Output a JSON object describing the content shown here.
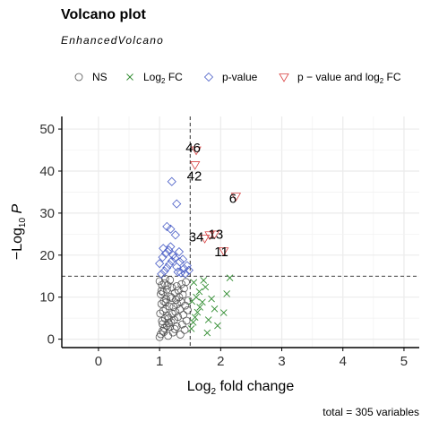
{
  "chart_data": {
    "type": "scatter",
    "title": "Volcano plot",
    "subtitle": "EnhancedVolcano",
    "caption": "total = 305 variables",
    "xlabel": "Log2 fold change",
    "ylabel": "−Log10 P",
    "xlim": [
      -0.6,
      5.25
    ],
    "ylim": [
      -2,
      53
    ],
    "x_ticks": [
      0,
      1,
      2,
      3,
      4,
      5
    ],
    "y_ticks": [
      0,
      10,
      20,
      30,
      40,
      50
    ],
    "thresholds": {
      "log2fc": 1.5,
      "neg_log10_p": 15
    },
    "grid": true,
    "legend_position": "top",
    "legend": [
      {
        "key": "NS",
        "label": "NS",
        "color": "#555555",
        "marker": "circle"
      },
      {
        "key": "FC",
        "label": "Log2 FC",
        "color": "#2e8b2e",
        "marker": "cross"
      },
      {
        "key": "P",
        "label": "p-value",
        "color": "#4b5fc7",
        "marker": "diamond"
      },
      {
        "key": "PFC",
        "label": "p − value and log2 FC",
        "color": "#d94040",
        "marker": "triangle-down"
      }
    ],
    "series": [
      {
        "key": "NS",
        "points": [
          [
            1.0,
            0.5
          ],
          [
            1.02,
            1.2
          ],
          [
            1.05,
            2.0
          ],
          [
            1.08,
            2.6
          ],
          [
            1.12,
            3.2
          ],
          [
            1.15,
            3.8
          ],
          [
            1.04,
            4.3
          ],
          [
            1.09,
            4.9
          ],
          [
            1.13,
            5.5
          ],
          [
            1.01,
            6.1
          ],
          [
            1.06,
            6.7
          ],
          [
            1.1,
            7.2
          ],
          [
            1.16,
            7.8
          ],
          [
            1.03,
            8.4
          ],
          [
            1.07,
            9.0
          ],
          [
            1.11,
            9.5
          ],
          [
            1.18,
            10.1
          ],
          [
            1.02,
            10.7
          ],
          [
            1.06,
            11.2
          ],
          [
            1.12,
            11.8
          ],
          [
            1.2,
            12.3
          ],
          [
            1.04,
            12.9
          ],
          [
            1.08,
            13.3
          ],
          [
            1.0,
            13.8
          ],
          [
            1.14,
            0.8
          ],
          [
            1.22,
            1.6
          ],
          [
            1.25,
            2.4
          ],
          [
            1.28,
            3.0
          ],
          [
            1.19,
            4.0
          ],
          [
            1.24,
            4.6
          ],
          [
            1.3,
            5.3
          ],
          [
            1.21,
            6.0
          ],
          [
            1.26,
            6.5
          ],
          [
            1.33,
            7.1
          ],
          [
            1.23,
            7.7
          ],
          [
            1.29,
            8.3
          ],
          [
            1.35,
            8.9
          ],
          [
            1.27,
            9.4
          ],
          [
            1.32,
            10.0
          ],
          [
            1.38,
            10.6
          ],
          [
            1.25,
            11.0
          ],
          [
            1.31,
            11.6
          ],
          [
            1.4,
            12.1
          ],
          [
            1.28,
            12.6
          ],
          [
            1.36,
            13.1
          ],
          [
            1.43,
            13.6
          ],
          [
            1.17,
            14.1
          ],
          [
            1.09,
            14.4
          ],
          [
            1.34,
            1.1
          ],
          [
            1.41,
            2.2
          ],
          [
            1.37,
            3.5
          ],
          [
            1.44,
            4.4
          ],
          [
            1.39,
            5.8
          ],
          [
            1.46,
            6.9
          ],
          [
            1.42,
            8.0
          ],
          [
            1.47,
            9.2
          ],
          [
            1.05,
            3.6
          ],
          [
            1.15,
            5.0
          ],
          [
            1.1,
            8.7
          ],
          [
            1.2,
            9.8
          ],
          [
            1.03,
            11.5
          ],
          [
            1.13,
            12.8
          ],
          [
            1.07,
            1.7
          ],
          [
            1.17,
            2.9
          ]
        ]
      },
      {
        "key": "FC",
        "points": [
          [
            1.52,
            2.5
          ],
          [
            1.55,
            4.0
          ],
          [
            1.58,
            5.2
          ],
          [
            1.62,
            6.4
          ],
          [
            1.66,
            7.6
          ],
          [
            1.7,
            8.8
          ],
          [
            1.6,
            10.0
          ],
          [
            1.65,
            11.3
          ],
          [
            1.75,
            12.4
          ],
          [
            1.56,
            13.5
          ],
          [
            1.8,
            4.6
          ],
          [
            1.85,
            9.6
          ],
          [
            1.78,
            1.5
          ],
          [
            1.9,
            7.2
          ],
          [
            2.05,
            6.3
          ],
          [
            2.1,
            10.8
          ],
          [
            2.15,
            14.6
          ],
          [
            1.95,
            3.2
          ],
          [
            1.72,
            14.0
          ],
          [
            1.53,
            9.0
          ]
        ]
      },
      {
        "key": "P",
        "points": [
          [
            1.03,
            15.5
          ],
          [
            1.08,
            16.2
          ],
          [
            1.12,
            17.0
          ],
          [
            1.16,
            17.8
          ],
          [
            1.2,
            18.6
          ],
          [
            1.25,
            19.3
          ],
          [
            1.3,
            16.0
          ],
          [
            1.35,
            15.8
          ],
          [
            1.4,
            16.8
          ],
          [
            1.45,
            17.5
          ],
          [
            1.05,
            19.5
          ],
          [
            1.1,
            20.4
          ],
          [
            1.15,
            21.2
          ],
          [
            1.22,
            20.0
          ],
          [
            1.28,
            17.2
          ],
          [
            1.33,
            18.4
          ],
          [
            1.38,
            19.0
          ],
          [
            1.42,
            15.6
          ],
          [
            1.18,
            22.0
          ],
          [
            1.12,
            26.8
          ],
          [
            1.18,
            26.2
          ],
          [
            1.26,
            24.8
          ],
          [
            1.2,
            37.5
          ],
          [
            1.28,
            32.2
          ],
          [
            1.48,
            16.4
          ],
          [
            1.0,
            18.0
          ],
          [
            1.06,
            21.6
          ],
          [
            1.32,
            20.8
          ]
        ]
      },
      {
        "key": "PFC",
        "points": [
          [
            1.74,
            24.0
          ],
          [
            1.82,
            24.8
          ],
          [
            1.9,
            25.0
          ],
          [
            2.05,
            21.0
          ],
          [
            2.25,
            34.0
          ],
          [
            1.6,
            45.0
          ],
          [
            1.58,
            41.5
          ]
        ]
      }
    ],
    "labels": [
      {
        "text": "46",
        "x": 1.55,
        "y": 45.5
      },
      {
        "text": "42",
        "x": 1.57,
        "y": 38.8
      },
      {
        "text": "6",
        "x": 2.2,
        "y": 33.5
      },
      {
        "text": "13",
        "x": 1.92,
        "y": 25.0
      },
      {
        "text": "34",
        "x": 1.6,
        "y": 24.3
      },
      {
        "text": "11",
        "x": 2.01,
        "y": 20.8
      }
    ]
  }
}
